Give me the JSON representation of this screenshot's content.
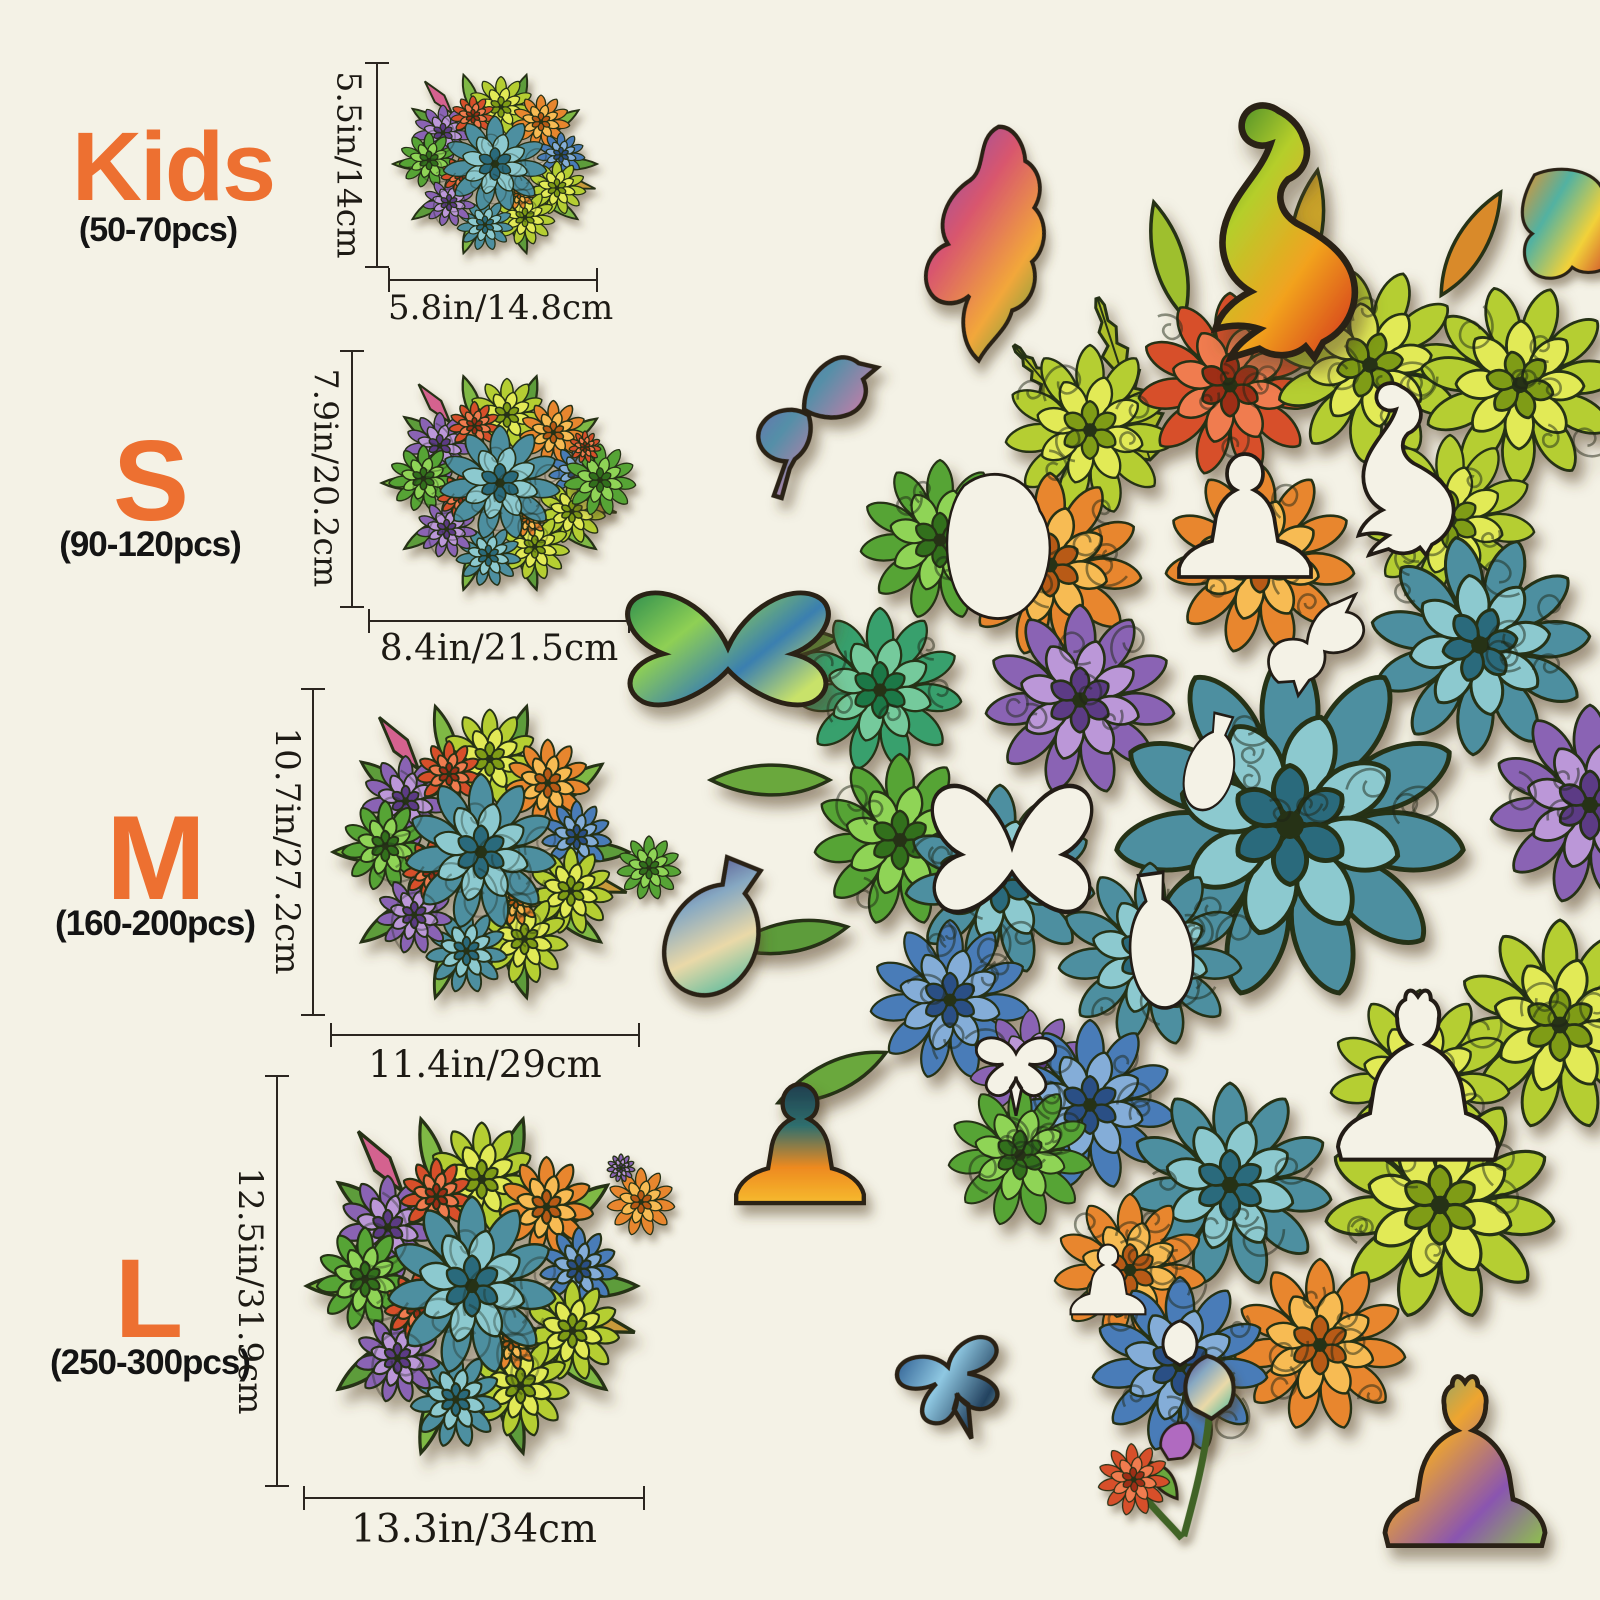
{
  "sizes": [
    {
      "id": "kids",
      "label": "Kids",
      "pieces": "(50-70pcs)",
      "height": "5.5in/14cm",
      "width": "5.8in/14.8cm"
    },
    {
      "id": "s",
      "label": "S",
      "pieces": "(90-120pcs)",
      "height": "7.9in/20.2cm",
      "width": "8.4in/21.5cm"
    },
    {
      "id": "m",
      "label": "M",
      "pieces": "(160-200pcs)",
      "height": "10.7in/27.2cm",
      "width": "11.4in/29cm"
    },
    {
      "id": "l",
      "label": "L",
      "pieces": "(250-300pcs)",
      "height": "12.5in/31.9cm",
      "width": "13.3in/34cm"
    }
  ],
  "colors": {
    "background": "#f4f2e6",
    "accent_orange": "#ed7031",
    "text_dark": "#141414",
    "measure_line": "#2b2620"
  },
  "puzzle_preview": {
    "loose_piece_icons": [
      "twisted-leaf",
      "peacock",
      "corner-leaves",
      "hummingbird",
      "butterfly",
      "succulent-mini",
      "vase",
      "meditating-person",
      "bee",
      "flower-sprig",
      "buddha"
    ],
    "cutout_hole_icons": [
      "blob",
      "sitting-person",
      "peacock",
      "dove",
      "butterfly",
      "vase",
      "bee",
      "buddha",
      "lotus-person",
      "tulip"
    ]
  }
}
